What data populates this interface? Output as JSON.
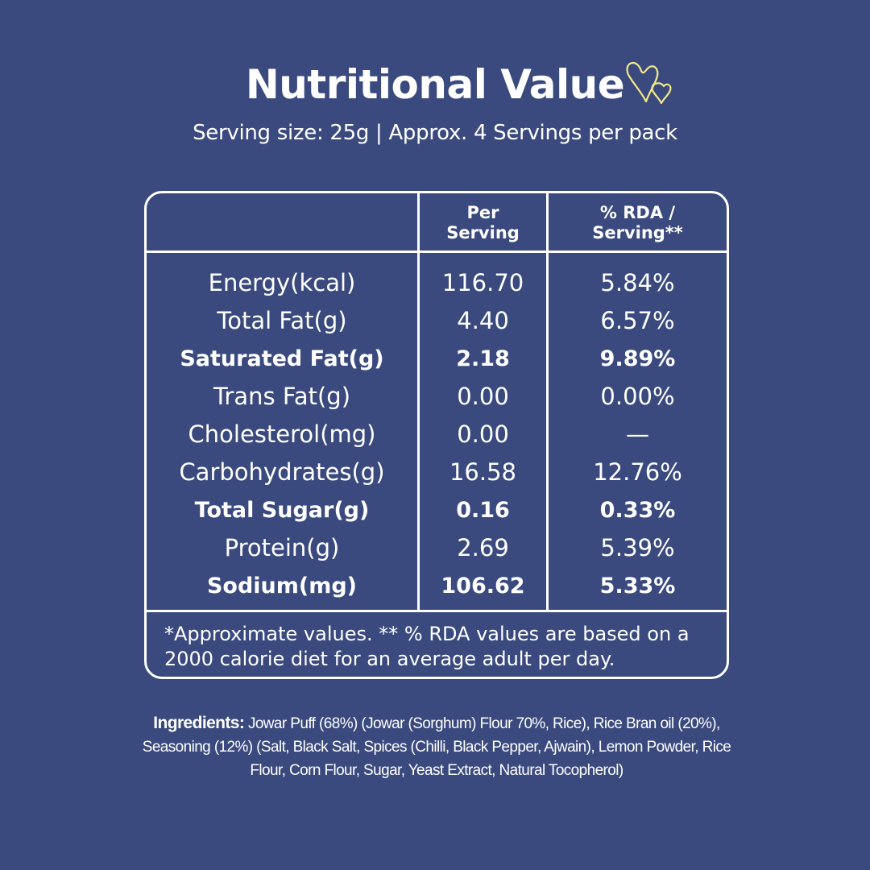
{
  "title": "Nutritional Value",
  "icon": "double-heart-icon",
  "accent_color": "#f3e98a",
  "background_color": "#3a4a7e",
  "subtitle": "Serving size: 25g | Approx. 4 Servings per pack",
  "table": {
    "headers": {
      "per_serving_line1": "Per",
      "per_serving_line2": "Serving",
      "rda_line1": "% RDA /",
      "rda_line2": "Serving**"
    },
    "rows": [
      {
        "name": "Energy(kcal)",
        "per_serving": "116.70",
        "rda": "5.84%",
        "bold": false
      },
      {
        "name": "Total Fat(g)",
        "per_serving": "4.40",
        "rda": "6.57%",
        "bold": false
      },
      {
        "name": "Saturated Fat(g)",
        "per_serving": "2.18",
        "rda": "9.89%",
        "bold": true
      },
      {
        "name": "Trans Fat(g)",
        "per_serving": "0.00",
        "rda": "0.00%",
        "bold": false
      },
      {
        "name": "Cholesterol(mg)",
        "per_serving": "0.00",
        "rda": "—",
        "bold": false
      },
      {
        "name": "Carbohydrates(g)",
        "per_serving": "16.58",
        "rda": "12.76%",
        "bold": false
      },
      {
        "name": "Total Sugar(g)",
        "per_serving": "0.16",
        "rda": "0.33%",
        "bold": true
      },
      {
        "name": "Protein(g)",
        "per_serving": "2.69",
        "rda": "5.39%",
        "bold": false
      },
      {
        "name": "Sodium(mg)",
        "per_serving": "106.62",
        "rda": "5.33%",
        "bold": true
      }
    ],
    "footnote": "*Approximate values. ** % RDA values are based on a 2000 calorie diet for an average adult per day."
  },
  "ingredients": {
    "label": "Ingredients:",
    "text": "Jowar Puff (68%)  (Jowar (Sorghum) Flour 70%, Rice), Rice Bran oil (20%), Seasoning (12%) (Salt, Black Salt, Spices (Chilli, Black Pepper, Ajwain), Lemon Powder, Rice Flour, Corn Flour, Sugar, Yeast Extract, Natural Tocopherol)"
  }
}
